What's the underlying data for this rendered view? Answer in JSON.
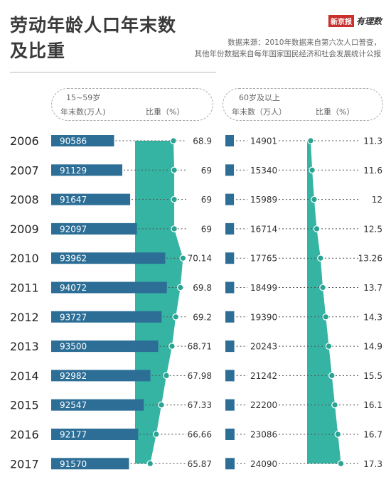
{
  "title_line1": "劳动年龄人口年末数",
  "title_line2": "及比重",
  "source_line1": "数据来源：2010年数据来自第六次人口普查，",
  "source_line2": "其他年份数据来自每年国家国民经济和社会发展统计公报",
  "logo": {
    "badge": "新京报",
    "script": "有理数"
  },
  "panel_left": {
    "group": "15~59岁",
    "col_count": "年末数(万人)",
    "col_share": "比重（%）"
  },
  "panel_right": {
    "group": "60岁及以上",
    "col_count": "年末数（万人）",
    "col_share": "比重（%）"
  },
  "colors": {
    "bar": "#2c6e96",
    "area": "#35b4a4",
    "dot": "#2aa393",
    "text": "#333333"
  },
  "chart_data": [
    {
      "type": "bar",
      "group": "15~59岁",
      "categories": [
        "2006",
        "2007",
        "2008",
        "2009",
        "2010",
        "2011",
        "2012",
        "2013",
        "2014",
        "2015",
        "2016",
        "2017"
      ],
      "series": [
        {
          "name": "年末数(万人)",
          "values": [
            90586,
            91129,
            91647,
            92097,
            93962,
            94072,
            93727,
            93500,
            92982,
            92547,
            92177,
            91570
          ]
        },
        {
          "name": "比重（%）",
          "values": [
            68.9,
            69,
            69,
            69,
            70.14,
            69.8,
            69.2,
            68.71,
            67.98,
            67.33,
            66.66,
            65.87
          ],
          "labels": [
            "68.9",
            "69",
            "69",
            "69",
            "70.14",
            "69.8",
            "69.2",
            "68.71",
            "67.98",
            "67.33",
            "66.66",
            "65.87"
          ]
        }
      ]
    },
    {
      "type": "bar",
      "group": "60岁及以上",
      "categories": [
        "2006",
        "2007",
        "2008",
        "2009",
        "2010",
        "2011",
        "2012",
        "2013",
        "2014",
        "2015",
        "2016",
        "2017"
      ],
      "series": [
        {
          "name": "年末数（万人）",
          "values": [
            14901,
            15340,
            15989,
            16714,
            17765,
            18499,
            19390,
            20243,
            21242,
            22200,
            23086,
            24090
          ]
        },
        {
          "name": "比重（%）",
          "values": [
            11.3,
            11.6,
            12,
            12.5,
            13.26,
            13.7,
            14.3,
            14.9,
            15.5,
            16.1,
            16.7,
            17.3
          ],
          "labels": [
            "11.3",
            "11.6",
            "12",
            "12.5",
            "13.26",
            "13.7",
            "14.3",
            "14.9",
            "15.5",
            "16.1",
            "16.7",
            "17.3"
          ]
        }
      ]
    }
  ]
}
